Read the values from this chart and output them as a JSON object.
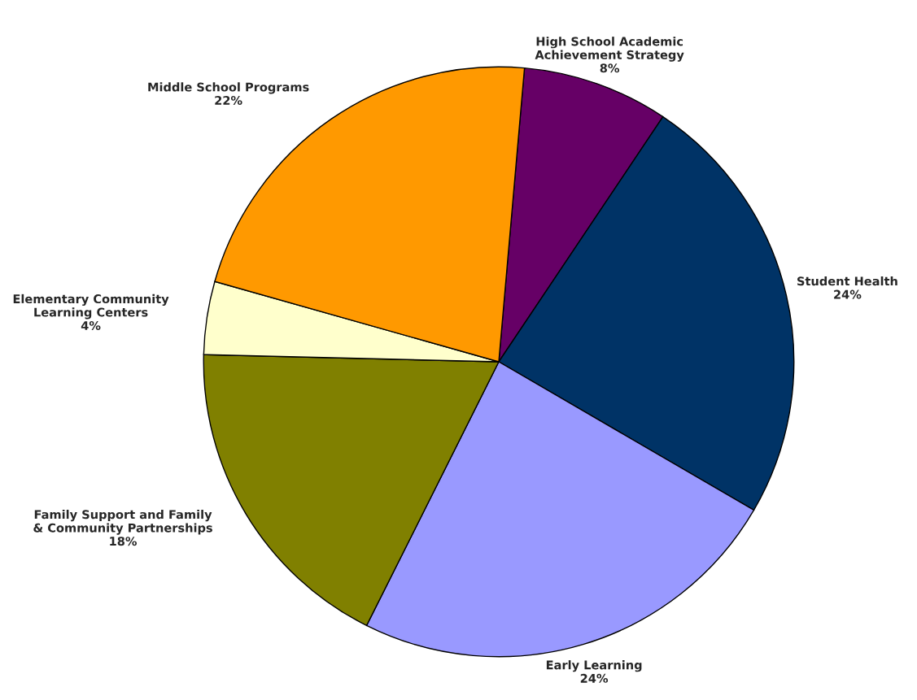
{
  "chart_data": {
    "type": "pie",
    "categories": [
      "High School Academic Achievement Strategy",
      "Student Health",
      "Early Learning",
      "Family Support and Family & Community Partnerships",
      "Elementary Community Learning Centers",
      "Middle School Programs"
    ],
    "values": [
      8,
      24,
      24,
      18,
      4,
      22
    ],
    "colors": [
      "#660066",
      "#003366",
      "#9999ff",
      "#808000",
      "#ffffcc",
      "#ff9900"
    ],
    "value_labels": [
      "8%",
      "24%",
      "24%",
      "18%",
      "4%",
      "22%"
    ],
    "legend": false
  }
}
